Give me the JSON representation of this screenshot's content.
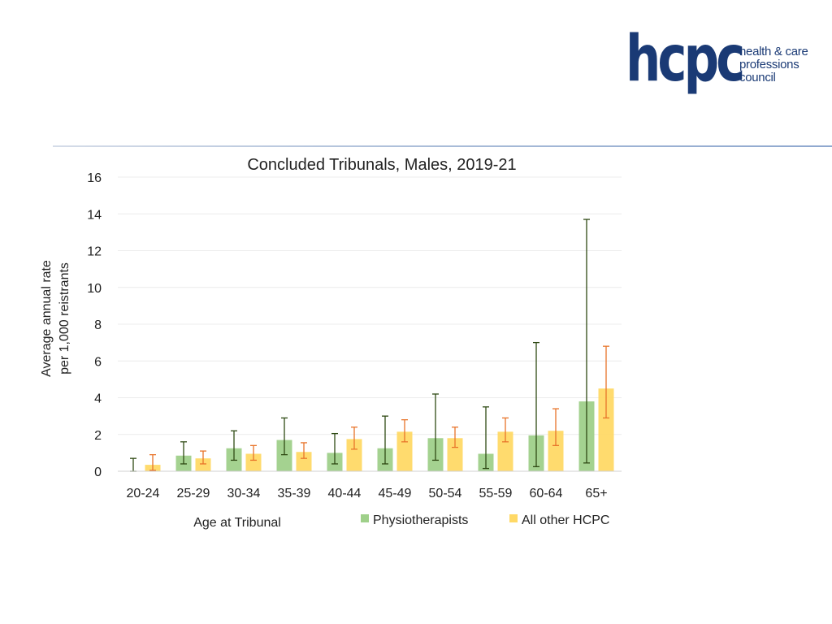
{
  "logo": {
    "mark": "hcpc",
    "lines": [
      "health & care",
      "professions",
      "council"
    ]
  },
  "chart_data": {
    "type": "bar",
    "title": "Concluded Tribunals, Males, 2019-21",
    "xlabel": "Age at Tribunal",
    "ylabel_lines": [
      "Average annual rate",
      "per 1,000 reistrants"
    ],
    "ylim": [
      0,
      16
    ],
    "yticks": [
      0,
      2,
      4,
      6,
      8,
      10,
      12,
      14,
      16
    ],
    "grid": true,
    "legend_position": "bottom",
    "categories": [
      "20-24",
      "25-29",
      "30-34",
      "35-39",
      "40-44",
      "45-49",
      "50-54",
      "55-59",
      "60-64",
      "65+"
    ],
    "series": [
      {
        "name": "Physiotherapists",
        "color": "#9fd08a",
        "error_color": "#2f4a14",
        "values": [
          0.0,
          0.85,
          1.25,
          1.7,
          1.0,
          1.25,
          1.8,
          0.95,
          1.95,
          3.8
        ],
        "error_low": [
          0.0,
          0.4,
          0.6,
          0.9,
          0.4,
          0.4,
          0.6,
          0.15,
          0.25,
          0.45
        ],
        "error_high": [
          0.7,
          1.6,
          2.2,
          2.9,
          2.05,
          3.0,
          4.2,
          3.5,
          7.0,
          13.7
        ]
      },
      {
        "name": "All other HCPC",
        "color": "#ffd966",
        "error_color": "#e8742a",
        "values": [
          0.35,
          0.7,
          0.95,
          1.05,
          1.75,
          2.15,
          1.8,
          2.15,
          2.2,
          4.5
        ],
        "error_low": [
          0.05,
          0.4,
          0.6,
          0.7,
          1.2,
          1.6,
          1.3,
          1.6,
          1.4,
          2.9
        ],
        "error_high": [
          0.9,
          1.1,
          1.4,
          1.55,
          2.4,
          2.8,
          2.4,
          2.9,
          3.4,
          6.8
        ]
      }
    ]
  }
}
